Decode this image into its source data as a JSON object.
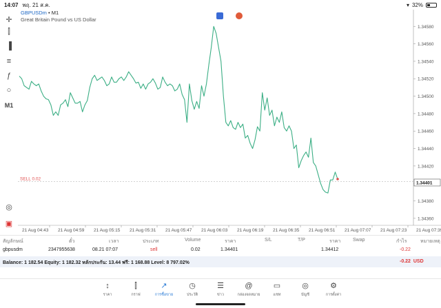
{
  "status": {
    "time": "14:07",
    "date": "พฤ. 21 ส.ค.",
    "battery": "32%"
  },
  "chart_info": {
    "symbol": "GBPUSDm",
    "timeframe": "M1",
    "description": "Great Britain Pound vs US Dollar"
  },
  "toolbar": {
    "timeframe_label": "M1",
    "icons": [
      "crosshair-icon",
      "candles-icon",
      "indicator-icon",
      "objects-icon",
      "function-icon",
      "shapes-icon",
      "timeframe-label",
      "zoom-icon",
      "trade-icon"
    ]
  },
  "chart_data": {
    "type": "line",
    "title": "",
    "x_labels": [
      "21 Aug 04:43",
      "21 Aug 04:59",
      "21 Aug 05:15",
      "21 Aug 05:31",
      "21 Aug 05:47",
      "21 Aug 06:03",
      "21 Aug 06:19",
      "21 Aug 06:35",
      "21 Aug 06:51",
      "21 Aug 07:07",
      "21 Aug 07:23",
      "21 Aug 07:39"
    ],
    "y_ticks": [
      1.3436,
      1.3438,
      1.344,
      1.3442,
      1.3444,
      1.3446,
      1.3448,
      1.345,
      1.3452,
      1.3454,
      1.3456,
      1.3458
    ],
    "y_tick_labels": [
      "1.34360",
      "1.34380",
      "1.34400",
      "1.34420",
      "1.34440",
      "1.34460",
      "1.34480",
      "1.34500",
      "1.34520",
      "1.34540",
      "1.34560",
      "1.34580"
    ],
    "ylim": [
      1.34352,
      1.34596
    ],
    "series": [
      {
        "values": [
          1.34523,
          1.3452,
          1.34512,
          1.3451,
          1.34508,
          1.34517,
          1.34514,
          1.34512,
          1.34514,
          1.34506,
          1.345,
          1.34497,
          1.34496,
          1.3449,
          1.34478,
          1.34482,
          1.34478,
          1.3449,
          1.34492,
          1.34496,
          1.34488,
          1.34504,
          1.34498,
          1.34492,
          1.34492,
          1.34494,
          1.34482,
          1.3449,
          1.34495,
          1.3451,
          1.3452,
          1.34524,
          1.34518,
          1.3452,
          1.34522,
          1.34518,
          1.34512,
          1.34514,
          1.34522,
          1.34516,
          1.34516,
          1.3452,
          1.34522,
          1.34518,
          1.34522,
          1.34528,
          1.34524,
          1.3452,
          1.34515,
          1.34516,
          1.34509,
          1.34514,
          1.34508,
          1.34514,
          1.34516,
          1.3452,
          1.34515,
          1.34508,
          1.3451,
          1.34522,
          1.34516,
          1.34512,
          1.34514,
          1.34512,
          1.34506,
          1.34508,
          1.34514,
          1.34502,
          1.34496,
          1.3447,
          1.34514,
          1.34495,
          1.34485,
          1.34494,
          1.34486,
          1.34512,
          1.345,
          1.34514,
          1.34536,
          1.34556,
          1.3458,
          1.34572,
          1.34556,
          1.3454,
          1.345,
          1.3447,
          1.34466,
          1.34472,
          1.34464,
          1.34462,
          1.3447,
          1.34464,
          1.34468,
          1.34452,
          1.34455,
          1.34446,
          1.3444,
          1.3445,
          1.34465,
          1.3446,
          1.34504,
          1.34484,
          1.34498,
          1.34478,
          1.34484,
          1.34466,
          1.34476,
          1.3447,
          1.34482,
          1.34464,
          1.3446,
          1.34466,
          1.3446,
          1.3444,
          1.34444,
          1.34418,
          1.34426,
          1.34432,
          1.34436,
          1.3443,
          1.34452,
          1.34424,
          1.3442,
          1.3441,
          1.344,
          1.34393,
          1.3439,
          1.34389,
          1.34404,
          1.34404,
          1.34413,
          1.34405
        ]
      }
    ],
    "current_price": 1.34401,
    "current_price_label": "1.34401",
    "sell_line": {
      "price": 1.34402,
      "label": "SELL 0.02"
    },
    "line_color": "#3aae84",
    "sell_line_color": "#e05050",
    "grid": true
  },
  "positions_table": {
    "headers": [
      "สัญลักษณ์",
      "ตั๋ว",
      "เวลา",
      "ประเภท",
      "Volume",
      "ราคา",
      "S/L",
      "T/P",
      "ราคา",
      "Swap",
      "กำไร",
      "หมายเหตุ"
    ],
    "rows": [
      {
        "symbol": "gbpusdm",
        "ticket": "2347955638",
        "time": "08.21 07:07",
        "type": "sell",
        "volume": "0.02",
        "price_open": "1.34401",
        "sl": "",
        "tp": "",
        "price_current": "1.34412",
        "swap": "",
        "profit": "-0.22",
        "comment": ""
      }
    ]
  },
  "balance_bar": {
    "text": "Balance: 1 182.54 Equity: 1 182.32 หลักประกัน: 13.44 ฟรี: 1 168.88 Level: 8 797.02%",
    "profit": "-0.22",
    "currency": "USD"
  },
  "tabs": [
    {
      "label": "ราคา",
      "icon": "quotes-icon"
    },
    {
      "label": "กราฟ",
      "icon": "charts-icon"
    },
    {
      "label": "การซื้อขาย",
      "icon": "trade-icon",
      "active": true
    },
    {
      "label": "ประวัติ",
      "icon": "history-icon"
    },
    {
      "label": "ข่าว",
      "icon": "news-icon"
    },
    {
      "label": "กล่องจดหมาย",
      "icon": "mailbox-icon"
    },
    {
      "label": "แชท",
      "icon": "chat-icon"
    },
    {
      "label": "บัญชี",
      "icon": "accounts-icon"
    },
    {
      "label": "การตั้งค่า",
      "icon": "settings-icon"
    }
  ]
}
